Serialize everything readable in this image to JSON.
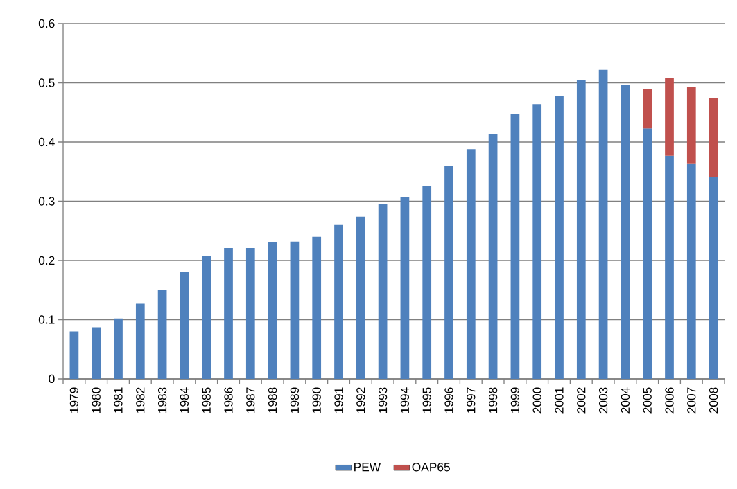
{
  "chart_data": {
    "type": "bar",
    "stacked": true,
    "categories": [
      "1979",
      "1980",
      "1981",
      "1982",
      "1983",
      "1984",
      "1985",
      "1986",
      "1987",
      "1988",
      "1989",
      "1990",
      "1991",
      "1992",
      "1993",
      "1994",
      "1995",
      "1996",
      "1997",
      "1998",
      "1999",
      "2000",
      "2001",
      "2002",
      "2003",
      "2004",
      "2005",
      "2006",
      "2007",
      "2008"
    ],
    "series": [
      {
        "name": "PEW",
        "color": "#4f81bd",
        "values": [
          0.08,
          0.087,
          0.102,
          0.127,
          0.15,
          0.181,
          0.207,
          0.221,
          0.221,
          0.231,
          0.232,
          0.24,
          0.26,
          0.274,
          0.295,
          0.307,
          0.325,
          0.36,
          0.388,
          0.413,
          0.448,
          0.464,
          0.478,
          0.504,
          0.522,
          0.496,
          0.423,
          0.377,
          0.363,
          0.341
        ]
      },
      {
        "name": "OAP65",
        "color": "#c0504d",
        "values": [
          null,
          null,
          null,
          null,
          null,
          null,
          null,
          null,
          null,
          null,
          null,
          null,
          null,
          null,
          null,
          null,
          null,
          null,
          null,
          null,
          null,
          null,
          null,
          null,
          null,
          null,
          0.067,
          0.131,
          0.13,
          0.133
        ]
      }
    ],
    "ylim": [
      0,
      0.6
    ],
    "yticks": [
      0,
      0.1,
      0.2,
      0.3,
      0.4,
      0.5,
      0.6
    ],
    "grid": "y",
    "legend": "bottom"
  }
}
